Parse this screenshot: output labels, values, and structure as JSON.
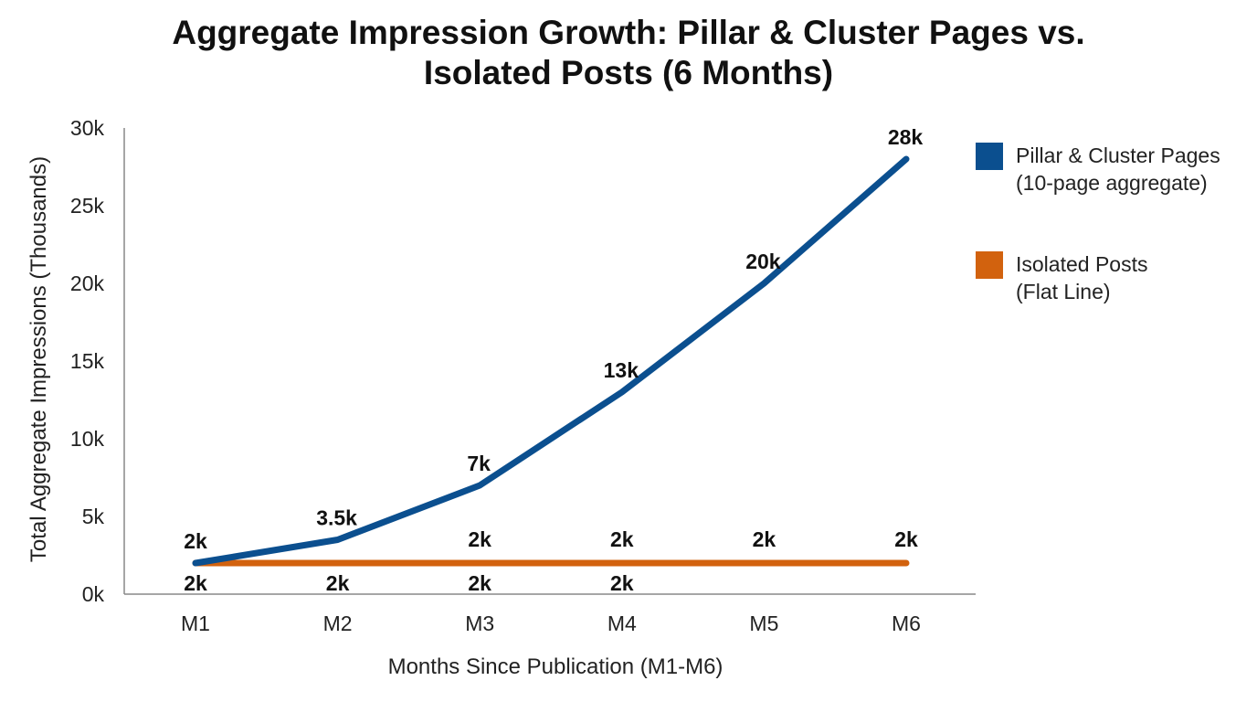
{
  "colors": {
    "pillar": "#0b4f8f",
    "isolated": "#d2620e",
    "axis": "#888888"
  },
  "chart_data": {
    "type": "line",
    "title_lines": [
      "Aggregate Impression Growth: Pillar & Cluster Pages vs.",
      "Isolated Posts (6 Months)"
    ],
    "xlabel": "Months Since Publication (M1-M6)",
    "ylabel": "Total Aggregate Impressions (Thousands)",
    "categories": [
      "M1",
      "M2",
      "M3",
      "M4",
      "M5",
      "M6"
    ],
    "ylim": [
      0,
      30
    ],
    "yticks": [
      {
        "value": 0,
        "label": "0k"
      },
      {
        "value": 5,
        "label": "5k"
      },
      {
        "value": 10,
        "label": "10k"
      },
      {
        "value": 15,
        "label": "15k"
      },
      {
        "value": 20,
        "label": "20k"
      },
      {
        "value": 25,
        "label": "25k"
      },
      {
        "value": 30,
        "label": "30k"
      }
    ],
    "grid": false,
    "legend_position": "right",
    "series": [
      {
        "name_lines": [
          "Pillar & Cluster Pages",
          "(10-page aggregate)"
        ],
        "color_key": "pillar",
        "values": [
          2,
          3.5,
          7,
          13,
          20,
          28
        ],
        "labels": [
          "2k",
          "3.5k",
          "7k",
          "13k",
          "20k",
          "28k"
        ],
        "label_position": "above"
      },
      {
        "name_lines": [
          "Isolated Posts",
          "(Flat Line)"
        ],
        "color_key": "isolated",
        "values": [
          2,
          2,
          2,
          2,
          2,
          2
        ],
        "labels": [
          "2k",
          "2k",
          "2k",
          "2k",
          "2k",
          "2k"
        ],
        "label_position": "mixed"
      }
    ]
  }
}
